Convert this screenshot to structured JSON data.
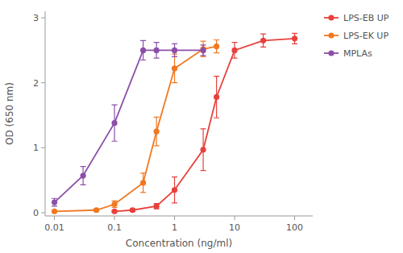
{
  "chart_data": {
    "type": "line",
    "xlabel": "Concentration (ng/ml)",
    "ylabel": "OD (650 nm)",
    "log": "x",
    "xlim": [
      0.007,
      200
    ],
    "ylim": [
      -0.05,
      3.1
    ],
    "xticks": [
      0.01,
      0.1,
      1,
      10,
      100
    ],
    "yticks": [
      0,
      1,
      2,
      3
    ],
    "grid": false,
    "legend": "right",
    "marker": "circle",
    "line_style": "solid",
    "series": [
      {
        "name": "LPS-EB UP",
        "color": "#e8413c",
        "x": [
          0.1,
          0.2,
          0.5,
          1,
          3,
          5,
          10,
          30,
          100
        ],
        "values": [
          0.02,
          0.04,
          0.1,
          0.35,
          0.97,
          1.78,
          2.5,
          2.65,
          2.68
        ],
        "yerr": [
          0.01,
          0.02,
          0.04,
          0.2,
          0.32,
          0.32,
          0.12,
          0.1,
          0.08
        ]
      },
      {
        "name": "LPS-EK UP",
        "color": "#f07820",
        "x": [
          0.01,
          0.05,
          0.1,
          0.3,
          0.5,
          1,
          3,
          5
        ],
        "values": [
          0.02,
          0.04,
          0.13,
          0.46,
          1.25,
          2.22,
          2.52,
          2.56
        ],
        "yerr": [
          0.01,
          0.02,
          0.05,
          0.15,
          0.22,
          0.22,
          0.12,
          0.1
        ]
      },
      {
        "name": "MPLAs",
        "color": "#8b4fa8",
        "x": [
          0.01,
          0.03,
          0.1,
          0.3,
          0.5,
          1,
          3
        ],
        "values": [
          0.16,
          0.57,
          1.38,
          2.5,
          2.5,
          2.5,
          2.5
        ],
        "yerr": [
          0.06,
          0.14,
          0.28,
          0.15,
          0.12,
          0.1,
          0.08
        ]
      }
    ]
  }
}
